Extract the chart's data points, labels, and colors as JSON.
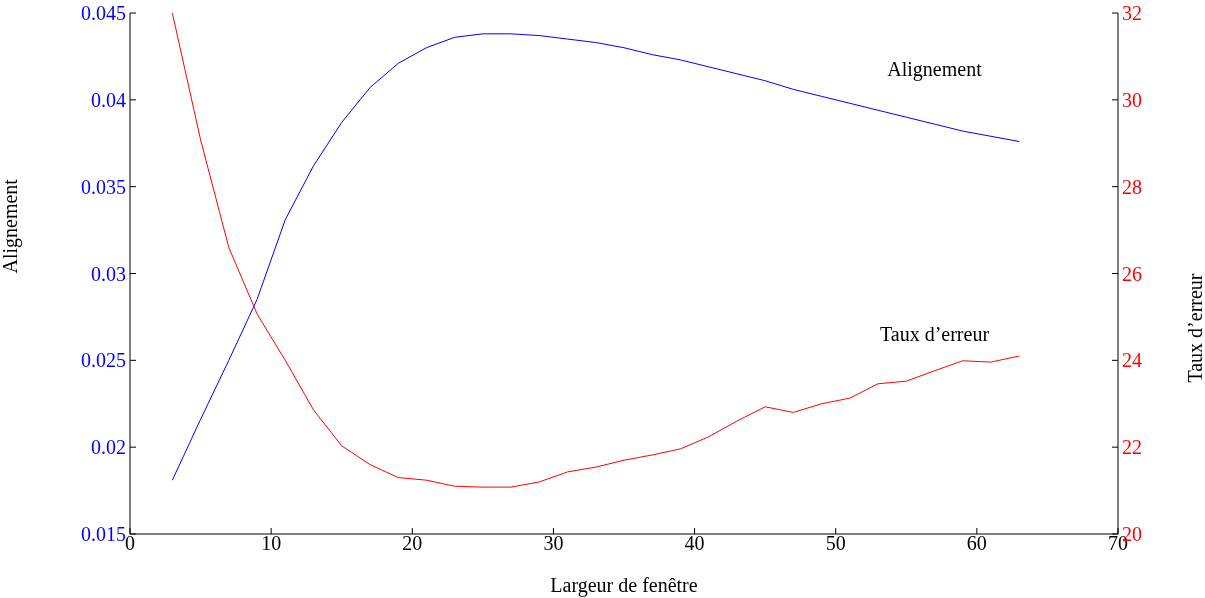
{
  "chart_data": {
    "type": "line",
    "xlabel": "Largeur de fenêtre",
    "ylabel": "Alignement",
    "y2label": "Taux d’erreur",
    "x": [
      3,
      5,
      7,
      9,
      11,
      13,
      15,
      17,
      19,
      21,
      23,
      25,
      27,
      29,
      31,
      33,
      35,
      37,
      39,
      41,
      43,
      45,
      47,
      49,
      51,
      53,
      55,
      57,
      59,
      61,
      63
    ],
    "series": [
      {
        "name": "Alignement",
        "color": "#0000ff",
        "values": [
          0.0181,
          0.0216,
          0.025,
          0.0285,
          0.0331,
          0.0362,
          0.0387,
          0.0407,
          0.0421,
          0.043,
          0.0436,
          0.0438,
          0.0438,
          0.0437,
          0.0435,
          0.0433,
          0.043,
          0.0426,
          0.0423,
          0.0419,
          0.0415,
          0.0411,
          0.0406,
          0.0402,
          0.0398,
          0.0394,
          0.039,
          0.0386,
          0.0382,
          0.0379,
          0.0376
        ]
      },
      {
        "name": "Taux d’erreur",
        "color": "#ff0000",
        "axis": "y2",
        "values": [
          32,
          29.08,
          26.6,
          25.07,
          24.0,
          22.86,
          22.03,
          21.6,
          21.3,
          21.24,
          21.1,
          21.08,
          21.08,
          21.2,
          21.43,
          21.54,
          21.7,
          21.82,
          21.96,
          22.24,
          22.6,
          22.93,
          22.8,
          23.0,
          23.13,
          23.46,
          23.52,
          23.76,
          23.99,
          23.96,
          24.1
        ]
      }
    ],
    "xlim": [
      0,
      70
    ],
    "xticks": [
      0,
      10,
      20,
      30,
      40,
      50,
      60,
      70
    ],
    "ylim": [
      0.015,
      0.045
    ],
    "yticks": [
      0.015,
      0.02,
      0.025,
      0.03,
      0.035,
      0.04,
      0.045
    ],
    "y2lim": [
      20,
      32
    ],
    "y2ticks": [
      20,
      22,
      24,
      26,
      28,
      30,
      32
    ],
    "grid": false,
    "legend": false,
    "marker": "none",
    "line_style": "solid"
  }
}
